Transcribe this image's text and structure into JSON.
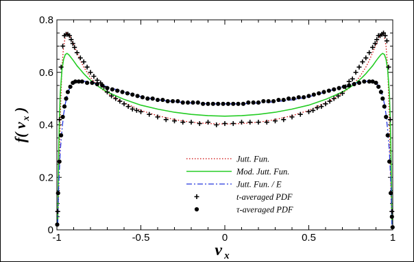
{
  "chart_data": {
    "type": "line",
    "xlabel": "v",
    "xlabel_sub": "x",
    "ylabel_func": "f",
    "ylabel_var": "v",
    "ylabel_sub": "x",
    "xlim": [
      -1,
      1
    ],
    "ylim": [
      0,
      0.8
    ],
    "x_ticks": [
      "-1",
      "-0.5",
      "0",
      "0.5",
      "1"
    ],
    "y_ticks": [
      "0",
      "0.2",
      "0.4",
      "0.6",
      "0.8"
    ],
    "x_tick_values": [
      -1,
      -0.5,
      0,
      0.5,
      1
    ],
    "y_tick_values": [
      0,
      0.2,
      0.4,
      0.6,
      0.8
    ],
    "grid": false,
    "legend_position": "lower-center",
    "series": [
      {
        "name": "Jutt. Fun.",
        "style": "dotted-line",
        "color": "#cc0000",
        "x": [
          -0.995,
          -0.99,
          -0.98,
          -0.97,
          -0.96,
          -0.95,
          -0.94,
          -0.93,
          -0.92,
          -0.91,
          -0.9,
          -0.88,
          -0.86,
          -0.84,
          -0.82,
          -0.8,
          -0.75,
          -0.7,
          -0.65,
          -0.6,
          -0.5,
          -0.4,
          -0.3,
          -0.2,
          -0.1,
          0,
          0.1,
          0.2,
          0.3,
          0.4,
          0.5,
          0.6,
          0.65,
          0.7,
          0.75,
          0.8,
          0.82,
          0.84,
          0.86,
          0.88,
          0.9,
          0.91,
          0.92,
          0.93,
          0.94,
          0.95,
          0.96,
          0.97,
          0.98,
          0.99,
          0.995
        ],
        "y": [
          0.02,
          0.12,
          0.42,
          0.62,
          0.7,
          0.735,
          0.75,
          0.745,
          0.735,
          0.72,
          0.705,
          0.675,
          0.645,
          0.62,
          0.6,
          0.58,
          0.545,
          0.52,
          0.5,
          0.485,
          0.455,
          0.435,
          0.42,
          0.41,
          0.405,
          0.403,
          0.405,
          0.41,
          0.42,
          0.435,
          0.455,
          0.485,
          0.5,
          0.52,
          0.545,
          0.58,
          0.6,
          0.62,
          0.645,
          0.675,
          0.705,
          0.72,
          0.735,
          0.745,
          0.75,
          0.735,
          0.7,
          0.62,
          0.42,
          0.12,
          0.02
        ]
      },
      {
        "name": "Mod. Jutt. Fun.",
        "style": "solid-line",
        "color": "#22cc22",
        "x": [
          -0.995,
          -0.99,
          -0.985,
          -0.98,
          -0.97,
          -0.96,
          -0.95,
          -0.94,
          -0.93,
          -0.92,
          -0.91,
          -0.9,
          -0.88,
          -0.86,
          -0.84,
          -0.82,
          -0.8,
          -0.75,
          -0.7,
          -0.6,
          -0.5,
          -0.4,
          -0.3,
          -0.2,
          -0.1,
          0,
          0.1,
          0.2,
          0.3,
          0.4,
          0.5,
          0.6,
          0.7,
          0.75,
          0.8,
          0.82,
          0.84,
          0.86,
          0.88,
          0.9,
          0.91,
          0.92,
          0.93,
          0.94,
          0.95,
          0.96,
          0.97,
          0.98,
          0.985,
          0.99,
          0.995
        ],
        "y": [
          0.02,
          0.28,
          0.42,
          0.52,
          0.61,
          0.65,
          0.668,
          0.672,
          0.668,
          0.66,
          0.652,
          0.643,
          0.625,
          0.61,
          0.595,
          0.582,
          0.57,
          0.545,
          0.525,
          0.497,
          0.475,
          0.46,
          0.448,
          0.44,
          0.435,
          0.433,
          0.435,
          0.44,
          0.448,
          0.46,
          0.475,
          0.497,
          0.525,
          0.545,
          0.57,
          0.582,
          0.595,
          0.61,
          0.625,
          0.643,
          0.652,
          0.66,
          0.668,
          0.672,
          0.668,
          0.65,
          0.61,
          0.52,
          0.42,
          0.28,
          0.02
        ]
      },
      {
        "name": "Jutt. Fun. / E",
        "style": "dash-dot-line",
        "color": "#2233dd",
        "x": [
          -0.995,
          -0.99,
          -0.98,
          -0.97,
          -0.96,
          -0.95,
          -0.94,
          -0.93,
          -0.92,
          -0.9,
          -0.88,
          -0.86,
          -0.84,
          -0.82,
          -0.8,
          -0.75,
          -0.7,
          -0.6,
          -0.5,
          -0.4,
          -0.3,
          -0.2,
          -0.1,
          0,
          0.1,
          0.2,
          0.3,
          0.4,
          0.5,
          0.6,
          0.7,
          0.75,
          0.8,
          0.82,
          0.84,
          0.86,
          0.88,
          0.9,
          0.92,
          0.93,
          0.94,
          0.95,
          0.96,
          0.97,
          0.98,
          0.99,
          0.995
        ],
        "y": [
          0.02,
          0.16,
          0.3,
          0.38,
          0.44,
          0.48,
          0.51,
          0.53,
          0.545,
          0.56,
          0.565,
          0.566,
          0.566,
          0.565,
          0.562,
          0.555,
          0.545,
          0.525,
          0.507,
          0.495,
          0.488,
          0.483,
          0.48,
          0.48,
          0.48,
          0.483,
          0.488,
          0.495,
          0.507,
          0.525,
          0.545,
          0.555,
          0.562,
          0.565,
          0.566,
          0.566,
          0.565,
          0.56,
          0.545,
          0.53,
          0.51,
          0.48,
          0.44,
          0.38,
          0.3,
          0.16,
          0.02
        ]
      },
      {
        "name": "t-averaged PDF",
        "style": "plus-marker",
        "color": "#000000",
        "x": [
          -0.995,
          -0.985,
          -0.975,
          -0.965,
          -0.955,
          -0.945,
          -0.935,
          -0.925,
          -0.915,
          -0.905,
          -0.895,
          -0.88,
          -0.86,
          -0.84,
          -0.82,
          -0.8,
          -0.78,
          -0.76,
          -0.74,
          -0.72,
          -0.7,
          -0.675,
          -0.65,
          -0.625,
          -0.6,
          -0.575,
          -0.55,
          -0.525,
          -0.5,
          -0.45,
          -0.4,
          -0.35,
          -0.3,
          -0.25,
          -0.2,
          -0.15,
          -0.1,
          -0.05,
          0,
          0.05,
          0.1,
          0.15,
          0.2,
          0.25,
          0.3,
          0.35,
          0.4,
          0.45,
          0.5,
          0.525,
          0.55,
          0.575,
          0.6,
          0.625,
          0.65,
          0.675,
          0.7,
          0.72,
          0.74,
          0.76,
          0.78,
          0.8,
          0.82,
          0.84,
          0.86,
          0.88,
          0.895,
          0.905,
          0.915,
          0.925,
          0.935,
          0.945,
          0.955,
          0.965,
          0.975,
          0.985,
          0.995
        ],
        "y": [
          0.07,
          0.42,
          0.62,
          0.7,
          0.74,
          0.745,
          0.745,
          0.74,
          0.725,
          0.71,
          0.695,
          0.675,
          0.655,
          0.64,
          0.62,
          0.6,
          0.585,
          0.57,
          0.56,
          0.545,
          0.525,
          0.51,
          0.5,
          0.49,
          0.48,
          0.47,
          0.46,
          0.455,
          0.45,
          0.44,
          0.43,
          0.42,
          0.415,
          0.41,
          0.41,
          0.405,
          0.41,
          0.4,
          0.405,
          0.405,
          0.41,
          0.41,
          0.41,
          0.41,
          0.415,
          0.42,
          0.43,
          0.44,
          0.45,
          0.455,
          0.465,
          0.47,
          0.48,
          0.49,
          0.5,
          0.51,
          0.52,
          0.545,
          0.565,
          0.575,
          0.6,
          0.62,
          0.64,
          0.655,
          0.675,
          0.695,
          0.71,
          0.725,
          0.74,
          0.74,
          0.745,
          0.75,
          0.74,
          0.72,
          0.62,
          0.42,
          0.07
        ]
      },
      {
        "name": "τ-averaged PDF",
        "style": "dot-marker",
        "color": "#000000",
        "x": [
          -0.998,
          -0.993,
          -0.985,
          -0.975,
          -0.965,
          -0.955,
          -0.945,
          -0.935,
          -0.92,
          -0.905,
          -0.89,
          -0.87,
          -0.85,
          -0.82,
          -0.79,
          -0.76,
          -0.73,
          -0.7,
          -0.67,
          -0.64,
          -0.61,
          -0.58,
          -0.55,
          -0.52,
          -0.49,
          -0.46,
          -0.43,
          -0.4,
          -0.37,
          -0.34,
          -0.31,
          -0.28,
          -0.25,
          -0.22,
          -0.19,
          -0.16,
          -0.13,
          -0.1,
          -0.07,
          -0.04,
          -0.01,
          0.02,
          0.05,
          0.08,
          0.11,
          0.14,
          0.17,
          0.2,
          0.23,
          0.26,
          0.29,
          0.32,
          0.35,
          0.38,
          0.41,
          0.44,
          0.47,
          0.5,
          0.53,
          0.56,
          0.59,
          0.62,
          0.65,
          0.68,
          0.71,
          0.74,
          0.77,
          0.8,
          0.83,
          0.86,
          0.88,
          0.9,
          0.915,
          0.93,
          0.94,
          0.95,
          0.96,
          0.97,
          0.98,
          0.988,
          0.995,
          0.999
        ],
        "y": [
          0.02,
          0.14,
          0.26,
          0.36,
          0.43,
          0.47,
          0.5,
          0.525,
          0.545,
          0.56,
          0.565,
          0.565,
          0.565,
          0.56,
          0.56,
          0.555,
          0.55,
          0.54,
          0.535,
          0.53,
          0.525,
          0.52,
          0.515,
          0.51,
          0.505,
          0.5,
          0.5,
          0.495,
          0.495,
          0.49,
          0.49,
          0.49,
          0.485,
          0.485,
          0.485,
          0.485,
          0.48,
          0.48,
          0.48,
          0.48,
          0.48,
          0.48,
          0.48,
          0.48,
          0.48,
          0.485,
          0.485,
          0.485,
          0.49,
          0.49,
          0.49,
          0.495,
          0.495,
          0.5,
          0.5,
          0.505,
          0.505,
          0.51,
          0.515,
          0.52,
          0.525,
          0.53,
          0.535,
          0.54,
          0.545,
          0.55,
          0.555,
          0.56,
          0.565,
          0.565,
          0.565,
          0.56,
          0.545,
          0.525,
          0.5,
          0.47,
          0.43,
          0.36,
          0.26,
          0.14,
          0.05,
          0.01
        ]
      }
    ]
  }
}
